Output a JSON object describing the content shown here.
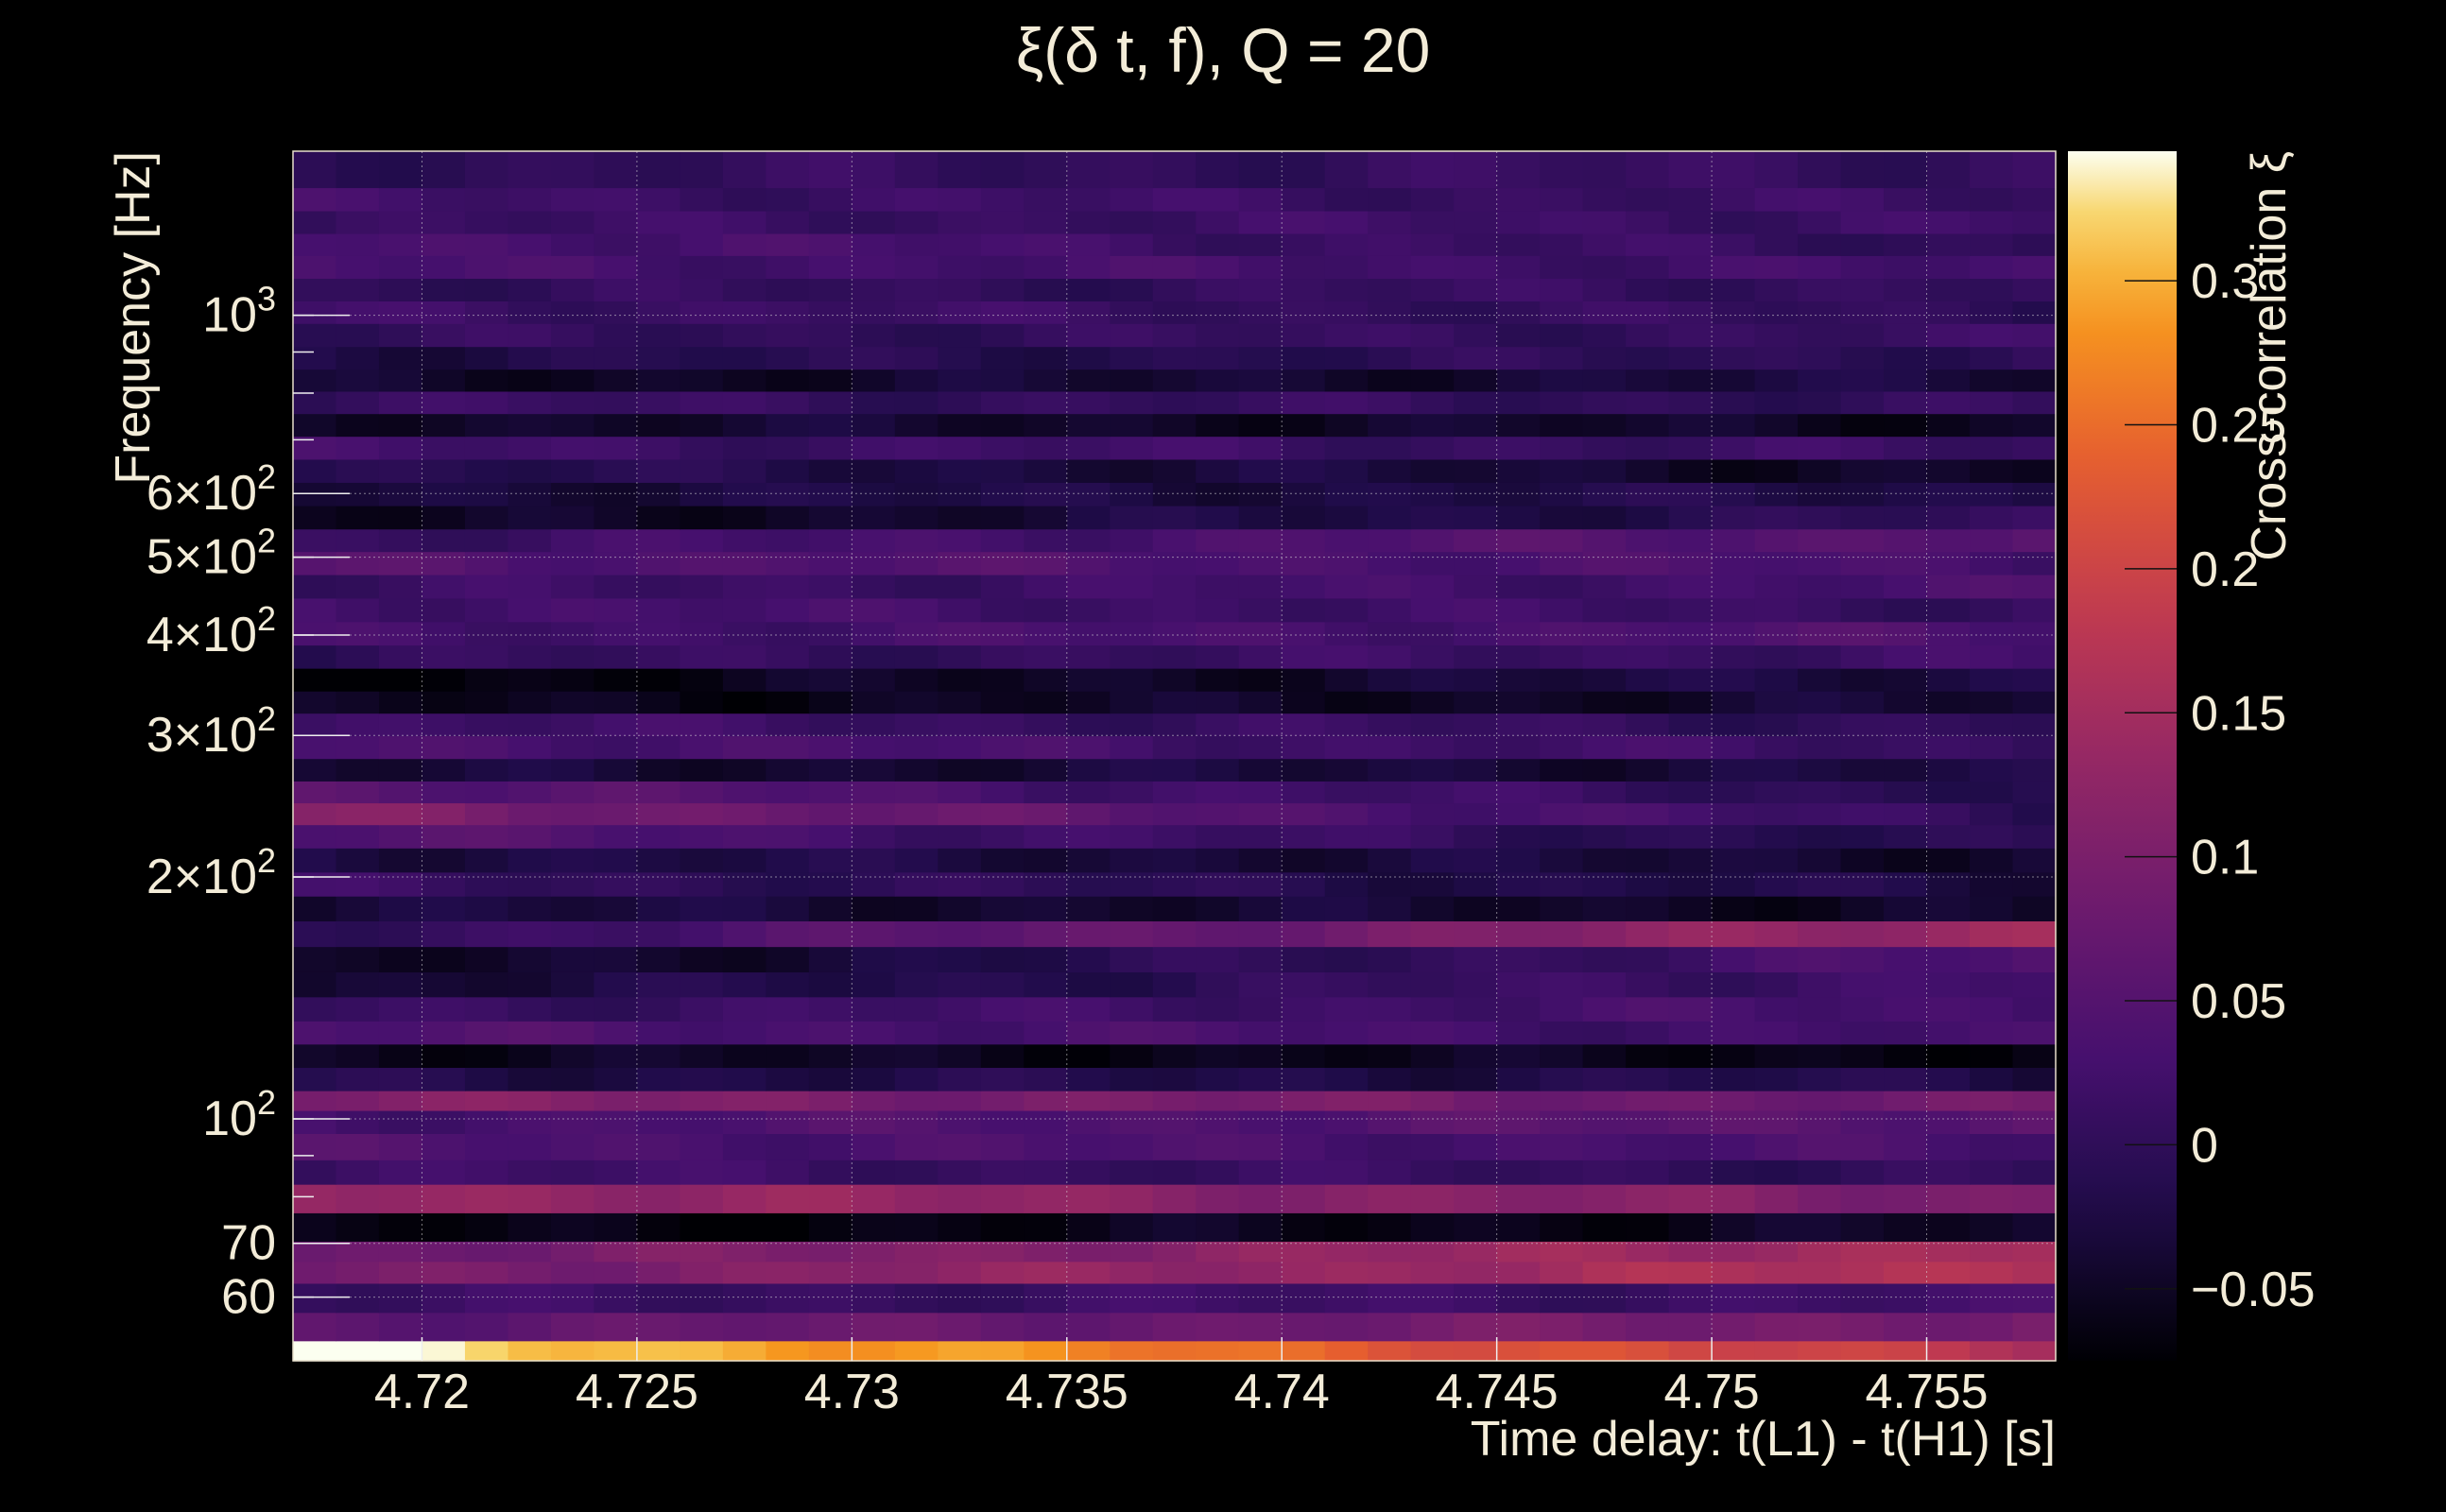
{
  "chart_data": {
    "type": "heatmap",
    "title": "ξ(δ t, f), Q = 20",
    "xlabel": "Time delay: t(L1) - t(H1) [s]",
    "ylabel": "Frequency [Hz]",
    "colorbar_label": "Cross-correlation ξ",
    "x_ticks": [
      4.72,
      4.725,
      4.73,
      4.735,
      4.74,
      4.745,
      4.75,
      4.755
    ],
    "x_tick_labels": [
      "4.72",
      "4.725",
      "4.73",
      "4.735",
      "4.74",
      "4.745",
      "4.75",
      "4.755"
    ],
    "xlim": [
      4.717,
      4.758
    ],
    "y_scale": "log",
    "ylim": [
      50,
      1600
    ],
    "y_ticks": [
      {
        "value": 60,
        "base": "60",
        "exp": ""
      },
      {
        "value": 70,
        "base": "70",
        "exp": ""
      },
      {
        "value": 100,
        "base": "10",
        "exp": "2"
      },
      {
        "value": 200,
        "base": "2×10",
        "exp": "2"
      },
      {
        "value": 300,
        "base": "3×10",
        "exp": "2"
      },
      {
        "value": 400,
        "base": "4×10",
        "exp": "2"
      },
      {
        "value": 500,
        "base": "5×10",
        "exp": "2"
      },
      {
        "value": 600,
        "base": "6×10",
        "exp": "2"
      },
      {
        "value": 1000,
        "base": "10",
        "exp": "3"
      }
    ],
    "colorbar_ticks": [
      -0.05,
      0,
      0.05,
      0.1,
      0.15,
      0.2,
      0.25,
      0.3
    ],
    "colorbar_tick_labels": [
      "−0.05",
      "0",
      "0.05",
      "0.1",
      "0.15",
      "0.2",
      "0.25",
      "0.3"
    ],
    "zlim": [
      -0.075,
      0.345
    ],
    "colormap": "inferno",
    "grid": true,
    "bands": [
      {
        "f": 51,
        "start": 0.345,
        "end": 0.17
      },
      {
        "f": 55,
        "start": 0.06,
        "end": 0.1
      },
      {
        "f": 60,
        "start": 0.01,
        "end": 0.02
      },
      {
        "f": 65,
        "start": 0.09,
        "end": 0.17
      },
      {
        "f": 68,
        "start": 0.08,
        "end": 0.16
      },
      {
        "f": 73,
        "start": -0.07,
        "end": -0.05
      },
      {
        "f": 80,
        "start": 0.14,
        "end": 0.1
      },
      {
        "f": 86,
        "start": 0.02,
        "end": 0.0
      },
      {
        "f": 92,
        "start": 0.04,
        "end": 0.03
      },
      {
        "f": 100,
        "start": 0.03,
        "end": 0.06
      },
      {
        "f": 105,
        "start": 0.11,
        "end": 0.08
      },
      {
        "f": 112,
        "start": -0.02,
        "end": -0.02
      },
      {
        "f": 120,
        "start": -0.05,
        "end": -0.06
      },
      {
        "f": 128,
        "start": 0.04,
        "end": 0.02
      },
      {
        "f": 137,
        "start": 0.01,
        "end": 0.03
      },
      {
        "f": 147,
        "start": -0.04,
        "end": 0.03
      },
      {
        "f": 158,
        "start": -0.06,
        "end": 0.04
      },
      {
        "f": 170,
        "start": 0.0,
        "end": 0.15
      },
      {
        "f": 183,
        "start": -0.03,
        "end": -0.05
      },
      {
        "f": 196,
        "start": 0.01,
        "end": -0.03
      },
      {
        "f": 210,
        "start": -0.02,
        "end": -0.04
      },
      {
        "f": 225,
        "start": 0.05,
        "end": -0.02
      },
      {
        "f": 240,
        "start": 0.11,
        "end": 0.0
      },
      {
        "f": 255,
        "start": 0.06,
        "end": -0.01
      },
      {
        "f": 272,
        "start": -0.04,
        "end": -0.03
      },
      {
        "f": 290,
        "start": 0.04,
        "end": 0.01
      },
      {
        "f": 310,
        "start": 0.02,
        "end": 0.0
      },
      {
        "f": 330,
        "start": -0.06,
        "end": -0.04
      },
      {
        "f": 352,
        "start": -0.07,
        "end": -0.02
      },
      {
        "f": 376,
        "start": 0.0,
        "end": 0.02
      },
      {
        "f": 402,
        "start": 0.02,
        "end": 0.04
      },
      {
        "f": 430,
        "start": 0.03,
        "end": 0.01
      },
      {
        "f": 460,
        "start": 0.01,
        "end": 0.03
      },
      {
        "f": 492,
        "start": 0.05,
        "end": 0.03
      },
      {
        "f": 525,
        "start": 0.01,
        "end": 0.06
      },
      {
        "f": 560,
        "start": -0.06,
        "end": 0.0
      },
      {
        "f": 600,
        "start": -0.03,
        "end": -0.02
      },
      {
        "f": 640,
        "start": -0.01,
        "end": -0.05
      },
      {
        "f": 685,
        "start": 0.02,
        "end": 0.01
      },
      {
        "f": 730,
        "start": -0.04,
        "end": -0.05
      },
      {
        "f": 780,
        "start": 0.01,
        "end": 0.0
      },
      {
        "f": 830,
        "start": -0.05,
        "end": -0.03
      },
      {
        "f": 885,
        "start": -0.02,
        "end": 0.0
      },
      {
        "f": 945,
        "start": 0.0,
        "end": 0.01
      },
      {
        "f": 1010,
        "start": 0.02,
        "end": 0.0
      },
      {
        "f": 1075,
        "start": 0.0,
        "end": 0.01
      },
      {
        "f": 1150,
        "start": 0.03,
        "end": 0.02
      },
      {
        "f": 1225,
        "start": 0.04,
        "end": 0.0
      },
      {
        "f": 1305,
        "start": 0.01,
        "end": 0.02
      },
      {
        "f": 1395,
        "start": 0.02,
        "end": 0.01
      },
      {
        "f": 1490,
        "start": 0.0,
        "end": 0.01
      }
    ]
  }
}
